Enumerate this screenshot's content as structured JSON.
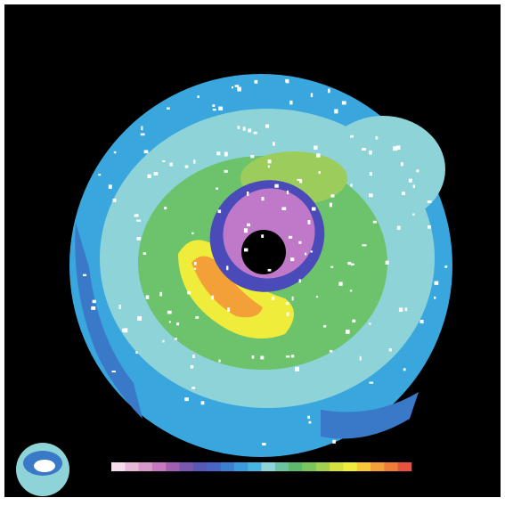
{
  "colorbar": {
    "colors": [
      "#f4dcec",
      "#e8b8d8",
      "#d898c8",
      "#c878c0",
      "#a060b0",
      "#7a58b0",
      "#5858b8",
      "#4a64c4",
      "#3a80d0",
      "#3a9cdc",
      "#48b4e0",
      "#8ed3d8",
      "#6cc3a0",
      "#5cbc6c",
      "#7cc45c",
      "#a4d050",
      "#d4e040",
      "#f0ec3c",
      "#f8c838",
      "#f4a038",
      "#f07c38",
      "#e85040"
    ]
  }
}
